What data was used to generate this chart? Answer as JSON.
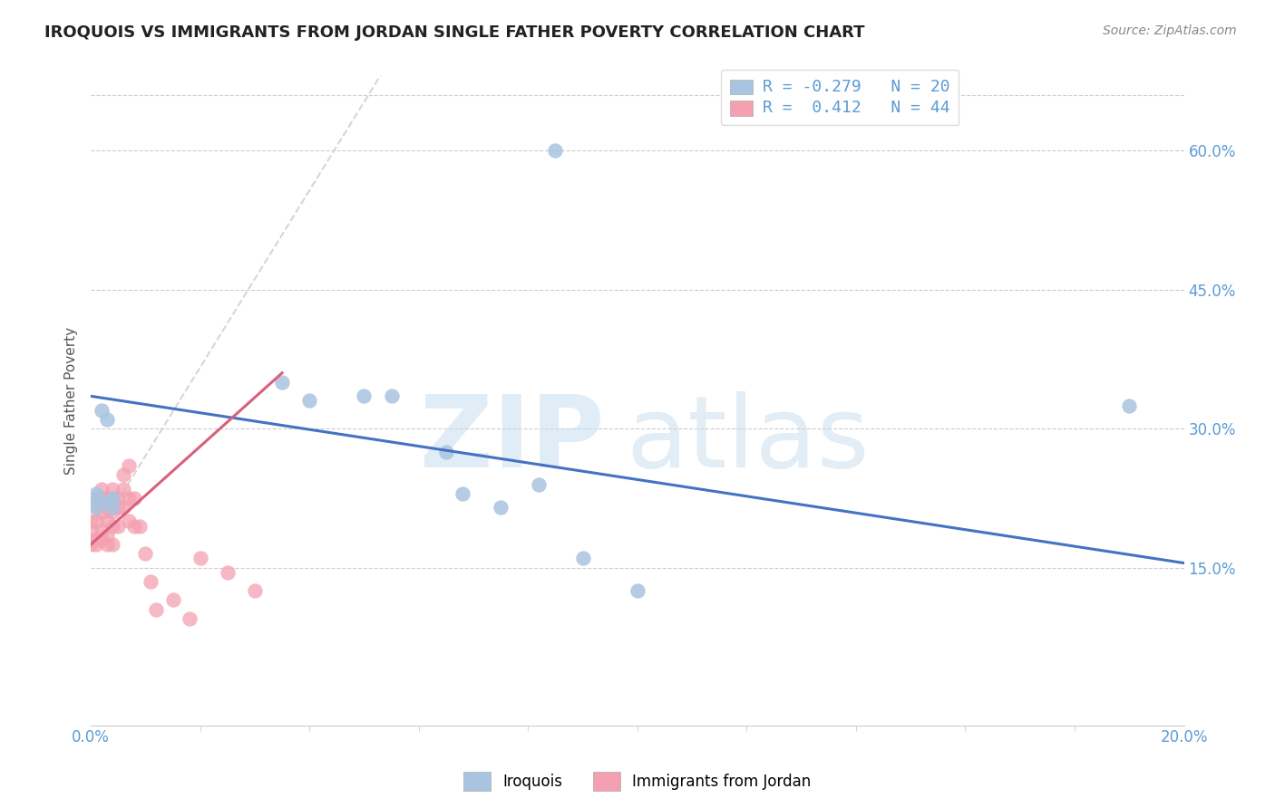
{
  "title": "IROQUOIS VS IMMIGRANTS FROM JORDAN SINGLE FATHER POVERTY CORRELATION CHART",
  "source": "Source: ZipAtlas.com",
  "ylabel": "Single Father Poverty",
  "watermark_zip": "ZIP",
  "watermark_atlas": "atlas",
  "xlim": [
    0.0,
    0.2
  ],
  "ylim": [
    -0.02,
    0.68
  ],
  "yticks": [
    0.15,
    0.3,
    0.45,
    0.6
  ],
  "ytick_labels": [
    "15.0%",
    "30.0%",
    "45.0%",
    "60.0%"
  ],
  "xtick_left": "0.0%",
  "xtick_right": "20.0%",
  "legend_line1": "R = -0.279   N = 20",
  "legend_line2": "R =  0.412   N = 44",
  "color_iroquois_fill": "#a8c4e0",
  "color_jordan_fill": "#f4a0b0",
  "color_line_iroquois": "#4472c4",
  "color_line_jordan": "#d9607a",
  "color_title": "#222222",
  "color_source": "#888888",
  "color_axis_ticks": "#5b9bd5",
  "color_grid": "#cccccc",
  "color_watermark": "#d0e4f5",
  "iroquois_x": [
    0.001,
    0.001,
    0.001,
    0.002,
    0.003,
    0.003,
    0.004,
    0.004,
    0.035,
    0.04,
    0.05,
    0.055,
    0.065,
    0.068,
    0.075,
    0.082,
    0.09,
    0.1,
    0.085,
    0.19
  ],
  "iroquois_y": [
    0.215,
    0.225,
    0.23,
    0.32,
    0.31,
    0.22,
    0.225,
    0.215,
    0.35,
    0.33,
    0.335,
    0.335,
    0.275,
    0.23,
    0.215,
    0.24,
    0.16,
    0.125,
    0.6,
    0.325
  ],
  "jordan_x": [
    0.0,
    0.0,
    0.0,
    0.0,
    0.001,
    0.001,
    0.001,
    0.001,
    0.001,
    0.002,
    0.002,
    0.002,
    0.002,
    0.002,
    0.003,
    0.003,
    0.003,
    0.003,
    0.003,
    0.004,
    0.004,
    0.004,
    0.004,
    0.004,
    0.005,
    0.005,
    0.005,
    0.006,
    0.006,
    0.006,
    0.007,
    0.007,
    0.007,
    0.008,
    0.008,
    0.009,
    0.01,
    0.011,
    0.012,
    0.015,
    0.018,
    0.02,
    0.025,
    0.03
  ],
  "jordan_y": [
    0.175,
    0.18,
    0.19,
    0.2,
    0.175,
    0.18,
    0.2,
    0.215,
    0.225,
    0.18,
    0.19,
    0.21,
    0.225,
    0.235,
    0.175,
    0.185,
    0.2,
    0.215,
    0.225,
    0.175,
    0.195,
    0.21,
    0.225,
    0.235,
    0.195,
    0.215,
    0.225,
    0.215,
    0.235,
    0.25,
    0.2,
    0.225,
    0.26,
    0.195,
    0.225,
    0.195,
    0.165,
    0.135,
    0.105,
    0.115,
    0.095,
    0.16,
    0.145,
    0.125
  ],
  "iroquois_trendline_x": [
    0.0,
    0.2
  ],
  "iroquois_trendline_y": [
    0.335,
    0.155
  ],
  "jordan_trendline_x": [
    0.0,
    0.035
  ],
  "jordan_trendline_y": [
    0.175,
    0.36
  ]
}
